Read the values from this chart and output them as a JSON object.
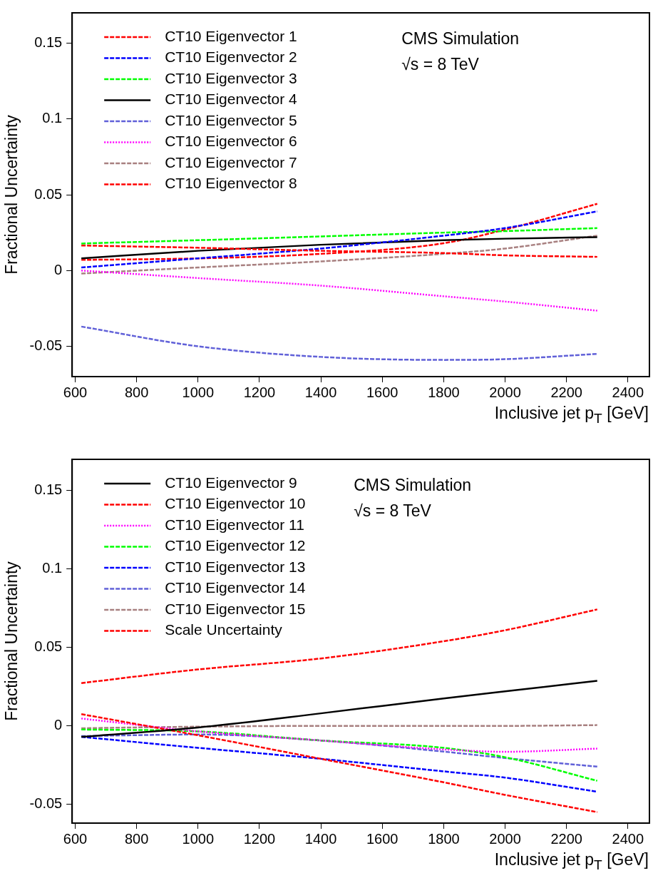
{
  "chart_data": [
    {
      "type": "line",
      "xlabel": "Inclusive jet p$_{T}$ [GeV]",
      "ylabel": "Fractional Uncertainty",
      "annotations": [
        "CMS Simulation",
        "√s = 8 TeV"
      ],
      "x": [
        620,
        1000,
        1400,
        1800,
        2000,
        2300
      ],
      "xlim": [
        590,
        2470
      ],
      "xticks": [
        600,
        800,
        1000,
        1200,
        1400,
        1600,
        1800,
        2000,
        2200,
        2400
      ],
      "ylim": [
        -0.07,
        0.17
      ],
      "yticks": [
        -0.05,
        0,
        0.05,
        0.1,
        0.15
      ],
      "grid": false,
      "legend": "top left",
      "marker": "none",
      "series": [
        {
          "name": "CT10 Eigenvector 1",
          "color": "#ff0000",
          "line_style": "dashed",
          "values": [
            0.0165,
            0.015,
            0.013,
            0.0115,
            0.01,
            0.009
          ]
        },
        {
          "name": "CT10 Eigenvector 2",
          "color": "#0000ff",
          "line_style": "dashed",
          "values": [
            0.002,
            0.008,
            0.0145,
            0.023,
            0.028,
            0.039
          ]
        },
        {
          "name": "CT10 Eigenvector 3",
          "color": "#00ff00",
          "line_style": "dashed",
          "values": [
            0.0178,
            0.02,
            0.0225,
            0.025,
            0.026,
            0.028
          ]
        },
        {
          "name": "CT10 Eigenvector 4",
          "color": "#000000",
          "line_style": "solid",
          "values": [
            0.008,
            0.013,
            0.017,
            0.02,
            0.021,
            0.022
          ]
        },
        {
          "name": "CT10 Eigenvector 5",
          "color": "#6060d8",
          "line_style": "dashed",
          "values": [
            -0.037,
            -0.05,
            -0.057,
            -0.059,
            -0.0585,
            -0.055
          ]
        },
        {
          "name": "CT10 Eigenvector 6",
          "color": "#ff00ff",
          "line_style": "dotted",
          "values": [
            0,
            -0.005,
            -0.01,
            -0.017,
            -0.0205,
            -0.0265
          ]
        },
        {
          "name": "CT10 Eigenvector 7",
          "color": "#a88080",
          "line_style": "dashed",
          "values": [
            -0.002,
            0.002,
            0.006,
            0.011,
            0.0145,
            0.023
          ]
        },
        {
          "name": "CT10 Eigenvector 8",
          "color": "#ff0000",
          "line_style": "dashed",
          "values": [
            0.007,
            0.008,
            0.011,
            0.018,
            0.027,
            0.044
          ]
        }
      ]
    },
    {
      "type": "line",
      "xlabel": "Inclusive jet p$_{T}$ [GeV]",
      "ylabel": "Fractional Uncertainty",
      "annotations": [
        "CMS Simulation",
        "√s = 8 TeV"
      ],
      "x": [
        620,
        1000,
        1400,
        1800,
        2000,
        2300
      ],
      "xlim": [
        590,
        2470
      ],
      "xticks": [
        600,
        800,
        1000,
        1200,
        1400,
        1600,
        1800,
        2000,
        2200,
        2400
      ],
      "ylim": [
        -0.062,
        0.17
      ],
      "yticks": [
        -0.05,
        0,
        0.05,
        0.1,
        0.15
      ],
      "grid": false,
      "legend": "top left",
      "marker": "none",
      "series": [
        {
          "name": "CT10 Eigenvector 9",
          "color": "#000000",
          "line_style": "solid",
          "values": [
            -0.007,
            -0.001,
            0.008,
            0.0175,
            0.022,
            0.0287
          ]
        },
        {
          "name": "CT10 Eigenvector 10",
          "color": "#ff0000",
          "line_style": "dashed",
          "values": [
            0.0075,
            -0.006,
            -0.021,
            -0.036,
            -0.044,
            -0.055
          ]
        },
        {
          "name": "CT10 Eigenvector 11",
          "color": "#ff00ff",
          "line_style": "dotted",
          "values": [
            0.0047,
            -0.0035,
            -0.0093,
            -0.015,
            -0.0165,
            -0.0145
          ]
        },
        {
          "name": "CT10 Eigenvector 12",
          "color": "#00ff00",
          "line_style": "dashed",
          "values": [
            -0.0023,
            -0.0035,
            -0.0093,
            -0.014,
            -0.02,
            -0.035
          ]
        },
        {
          "name": "CT10 Eigenvector 13",
          "color": "#0000ff",
          "line_style": "dashed",
          "values": [
            -0.007,
            -0.014,
            -0.021,
            -0.029,
            -0.033,
            -0.042
          ]
        },
        {
          "name": "CT10 Eigenvector 14",
          "color": "#6060d8",
          "line_style": "dashed",
          "values": [
            -0.0065,
            -0.0055,
            -0.0093,
            -0.0164,
            -0.0205,
            -0.026
          ]
        },
        {
          "name": "CT10 Eigenvector 15",
          "color": "#a88080",
          "line_style": "dashed",
          "values": [
            -0.0015,
            -0.0005,
            0,
            0,
            0,
            0.0005
          ]
        },
        {
          "name": "Scale Uncertainty",
          "color": "#ff0000",
          "line_style": "dashed",
          "values": [
            0.0273,
            0.036,
            0.043,
            0.054,
            0.061,
            0.0743
          ]
        }
      ]
    }
  ]
}
